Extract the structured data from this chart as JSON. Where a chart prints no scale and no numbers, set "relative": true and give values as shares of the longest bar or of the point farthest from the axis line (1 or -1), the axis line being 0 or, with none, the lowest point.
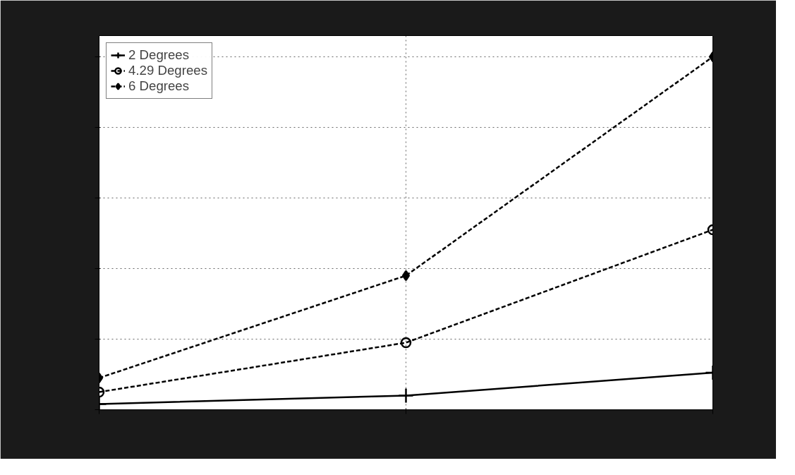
{
  "chart_data": {
    "type": "line",
    "relative": true,
    "categories": [
      null,
      null,
      null
    ],
    "grid": true,
    "legend": "top left",
    "series": [
      {
        "name": "2 Degrees",
        "color": "#000000",
        "marker": "cross",
        "line_style": "solid",
        "values": [
          0.016,
          0.04,
          0.105
        ]
      },
      {
        "name": "4.29 Degrees",
        "color": "#000000",
        "marker": "circle",
        "line_style": "dashed",
        "values": [
          0.05,
          0.19,
          0.51
        ]
      },
      {
        "name": "6 Degrees",
        "color": "#000000",
        "marker": "diamond",
        "line_style": "dashed",
        "values": [
          0.09,
          0.38,
          1.0
        ]
      }
    ]
  }
}
